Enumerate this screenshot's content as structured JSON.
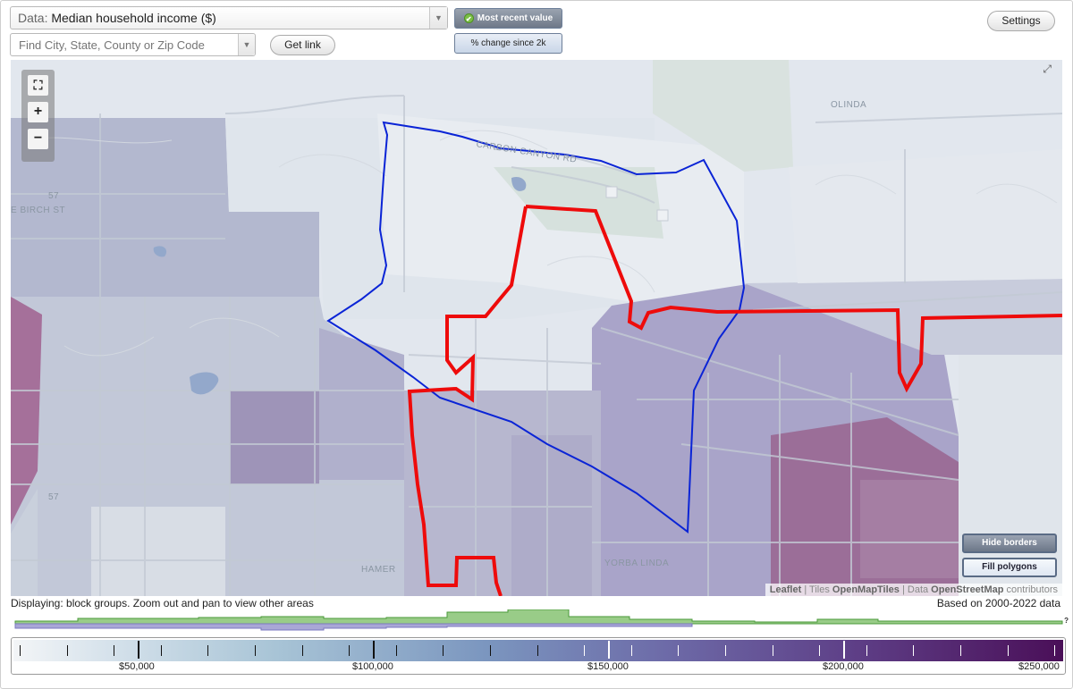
{
  "controls": {
    "data_prefix": "Data:",
    "data_value": "Median household income ($)",
    "search_placeholder": "Find City, State, County or Zip Code",
    "get_link": "Get link",
    "most_recent": "Most recent value",
    "pct_change": "% change since 2k",
    "settings": "Settings"
  },
  "map": {
    "labels": {
      "carbon_canyon": "CARBON CANYON RD",
      "olinda": "OLINDA",
      "yorba_linda": "YORBA LINDA",
      "hamer": "HAMER",
      "birch_st": "E BIRCH ST",
      "route_57_a": "57",
      "route_57_b": "57"
    },
    "fullscreen": "⤢",
    "zoom_in": "+",
    "zoom_out": "−",
    "hide_borders": "Hide borders",
    "fill_polygons": "Fill polygons",
    "attribution": {
      "leaflet": "Leaflet",
      "sep1": " | Tiles ",
      "tiles": "OpenMapTiles",
      "sep2": " | Data ",
      "data": "OpenStreetMap",
      "contrib": " contributors"
    }
  },
  "footer": {
    "displaying": "Displaying: block groups. Zoom out and pan to view other areas",
    "based_on": "Based on 2000-2022 data",
    "help": "?"
  },
  "legend": {
    "labels": [
      "$50,000",
      "$100,000",
      "$150,000",
      "$200,000",
      "$250,000"
    ],
    "min": 25000,
    "max": 250000
  }
}
